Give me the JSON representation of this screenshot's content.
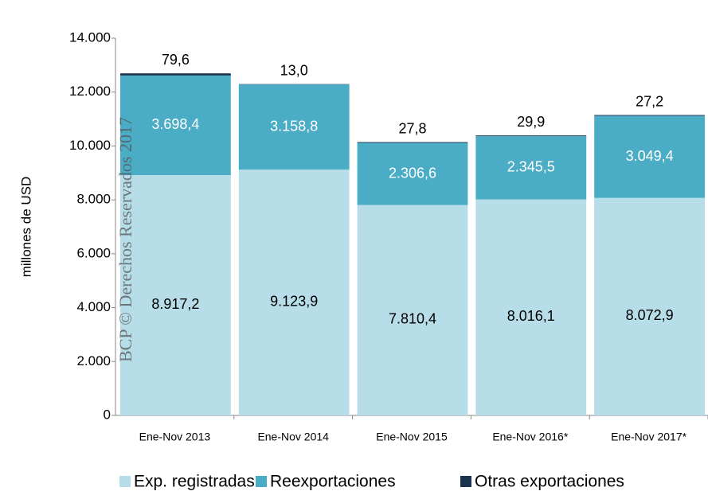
{
  "chart_data": {
    "type": "stacked_bar",
    "watermark": "BCP © Derechos Reservados 2017",
    "y_label": "millones de  USD",
    "categories": [
      "Ene-Nov 2013",
      "Ene-Nov 2014",
      "Ene-Nov 2015",
      "Ene-Nov 2016*",
      "Ene-Nov 2017*"
    ],
    "series": [
      {
        "name": "Exp. registradas",
        "color": "#b7dde8",
        "values": [
          8917.2,
          9123.9,
          7810.4,
          8016.1,
          8072.9
        ],
        "value_labels": [
          "8.917,2",
          "9.123,9",
          "7.810,4",
          "8.016,1",
          "8.072,9"
        ]
      },
      {
        "name": "Reexportaciones",
        "color": "#4bacc6",
        "values": [
          3698.4,
          3158.8,
          2306.6,
          2345.5,
          3049.4
        ],
        "value_labels": [
          "3.698,4",
          "3.158,8",
          "2.306,6",
          "2.345,5",
          "3.049,4"
        ]
      },
      {
        "name": "Otras exportaciones",
        "color": "#1c3350",
        "values": [
          79.6,
          13.0,
          27.8,
          29.9,
          27.2
        ],
        "value_labels": [
          "79,6",
          "13,0",
          "27,8",
          "29,9",
          "27,2"
        ]
      }
    ],
    "ylim": [
      0,
      14000
    ],
    "yticks": [
      0,
      {
        "value": 2000,
        "label": "2.000"
      },
      {
        "value": 4000,
        "label": "4.000"
      },
      {
        "value": 6000,
        "label": "6.000"
      },
      {
        "value": 8000,
        "label": "8.000"
      },
      {
        "value": 10000,
        "label": "10.000"
      },
      {
        "value": 12000,
        "label": "12.000"
      },
      {
        "value": 14000,
        "label": "14.000"
      }
    ],
    "legend": "bottom"
  }
}
